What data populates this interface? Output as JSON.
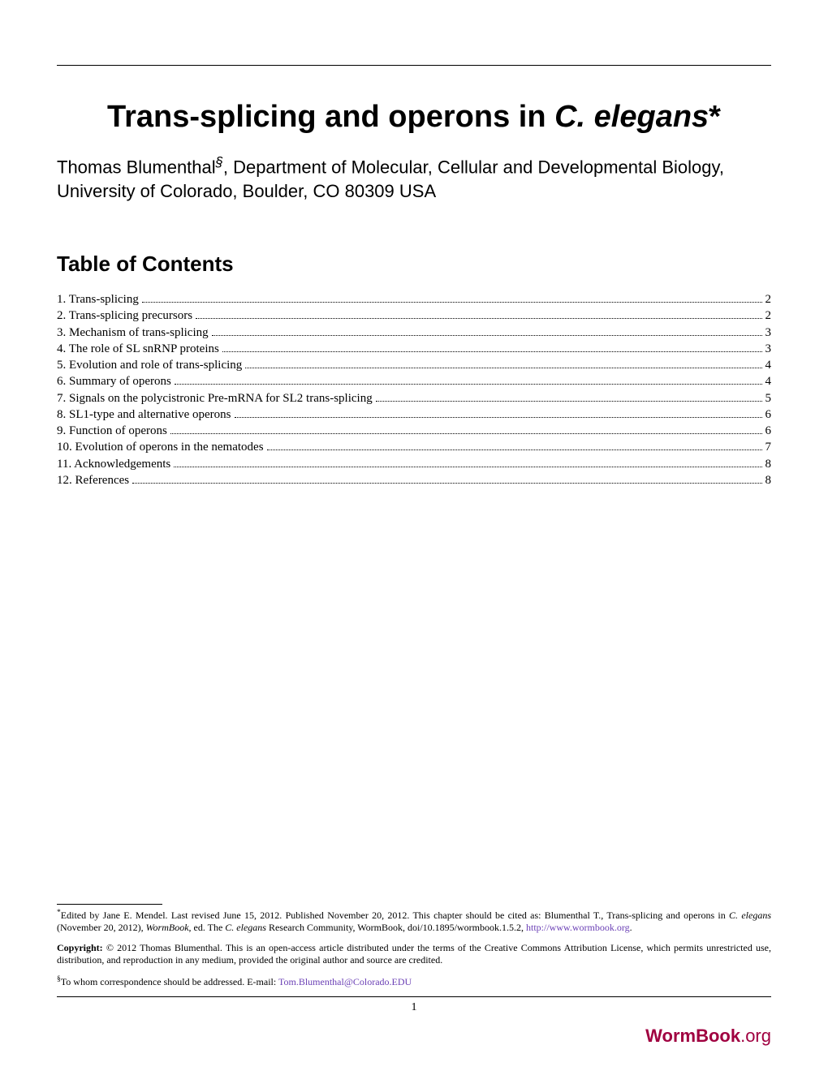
{
  "title_part1": "Trans-splicing and operons in ",
  "title_italic": "C. elegans",
  "title_suffix": "*",
  "author_name": "Thomas Blumenthal",
  "author_sup": "§",
  "author_affiliation": ", Department of Molecular, Cellular and Developmental Biology, University of Colorado, Boulder, CO 80309 USA",
  "toc_heading": "Table of Contents",
  "toc": [
    {
      "label": "1. Trans-splicing",
      "page": "2"
    },
    {
      "label": "2. Trans-splicing precursors",
      "page": "2"
    },
    {
      "label": "3. Mechanism of trans-splicing",
      "page": "3"
    },
    {
      "label": "4. The role of SL snRNP proteins",
      "page": "3"
    },
    {
      "label": "5. Evolution and role of trans-splicing",
      "page": "4"
    },
    {
      "label": "6. Summary of operons",
      "page": "4"
    },
    {
      "label": "7. Signals on the polycistronic Pre-mRNA for SL2 trans-splicing",
      "page": "5"
    },
    {
      "label": "8. SL1-type and alternative operons",
      "page": "6"
    },
    {
      "label": "9. Function of operons",
      "page": "6"
    },
    {
      "label": "10. Evolution of operons in the nematodes",
      "page": "7"
    },
    {
      "label": "11. Acknowledgements",
      "page": "8"
    },
    {
      "label": "12. References",
      "page": "8"
    }
  ],
  "footnote1_sup": "*",
  "footnote1_text_a": "Edited by Jane E. Mendel. Last revised June 15, 2012. Published November 20, 2012. This chapter should be cited as: Blumenthal T., Trans-splicing and operons in ",
  "footnote1_italic1": "C. elegans",
  "footnote1_text_b": " (November 20, 2012), ",
  "footnote1_italic2": "WormBook",
  "footnote1_text_c": ", ed. The ",
  "footnote1_italic3": "C. elegans",
  "footnote1_text_d": " Research Community, WormBook, doi/10.1895/wormbook.1.5.2, ",
  "footnote1_link": "http://www.wormbook.org",
  "footnote1_period": ".",
  "footnote2_bold": "Copyright:",
  "footnote2_text": " © 2012 Thomas Blumenthal. This is an open-access article distributed under the terms of the Creative Commons Attribution License, which permits unrestricted use, distribution, and reproduction in any medium, provided the original author and source are credited.",
  "footnote3_sup": "§",
  "footnote3_text": "To whom correspondence should be addressed. E-mail: ",
  "footnote3_link": "Tom.Blumenthal@Colorado.EDU",
  "page_number": "1",
  "logo_bold": "WormBook",
  "logo_rest": ".org",
  "colors": {
    "text": "#000000",
    "link": "#6a3fb5",
    "logo": "#a00040",
    "background": "#ffffff"
  }
}
